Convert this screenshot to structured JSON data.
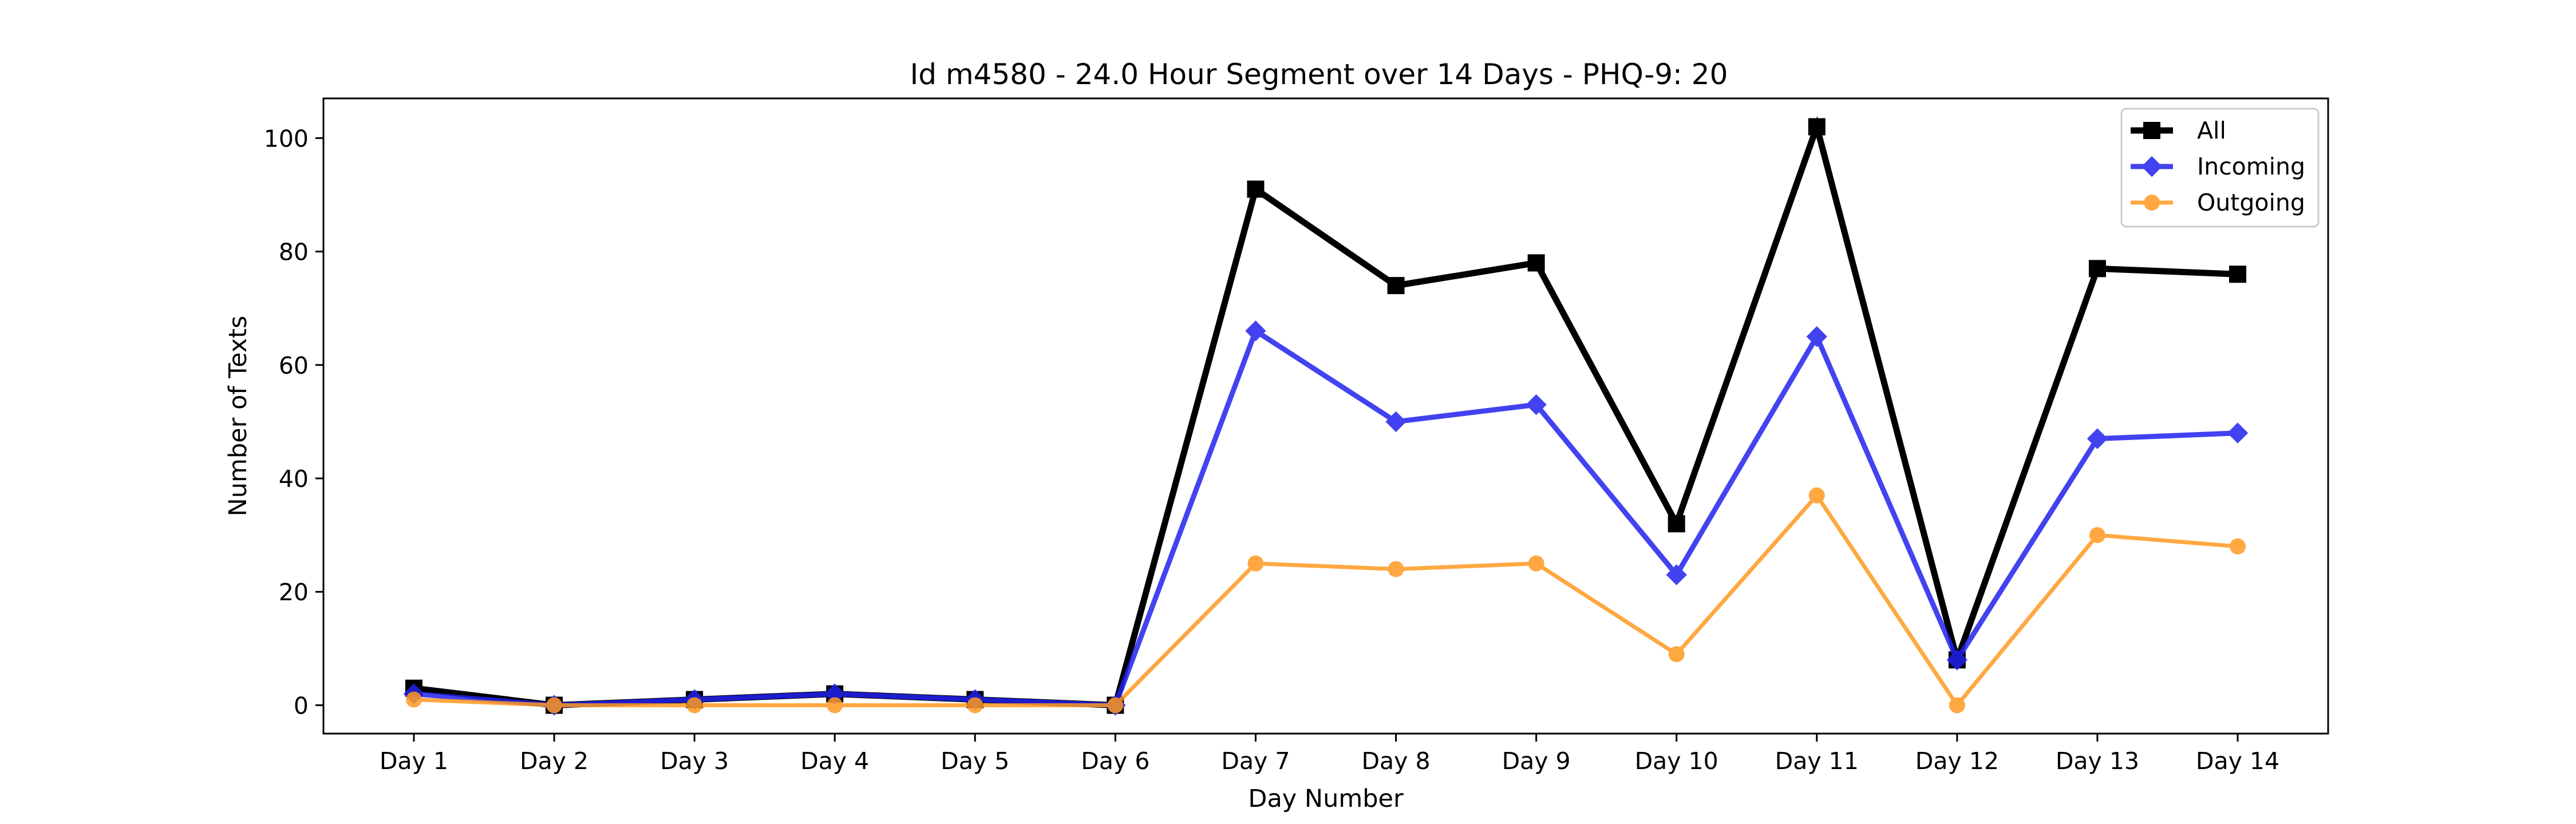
{
  "chart_data": {
    "type": "line",
    "title": "Id m4580 - 24.0 Hour Segment over 14 Days - PHQ-9: 20",
    "xlabel": "Day Number",
    "ylabel": "Number of Texts",
    "categories": [
      "Day 1",
      "Day 2",
      "Day 3",
      "Day 4",
      "Day 5",
      "Day 6",
      "Day 7",
      "Day 8",
      "Day 9",
      "Day 10",
      "Day 11",
      "Day 12",
      "Day 13",
      "Day 14"
    ],
    "ylim": [
      -5,
      107
    ],
    "yticks": [
      0,
      20,
      40,
      60,
      80,
      100
    ],
    "grid": false,
    "legend_position": "top-right",
    "series": [
      {
        "name": "All",
        "color": "#000000",
        "marker": "square",
        "values": [
          3,
          0,
          1,
          2,
          1,
          0,
          91,
          74,
          78,
          32,
          102,
          8,
          77,
          76
        ]
      },
      {
        "name": "Incoming",
        "color": "#2222ee",
        "marker": "diamond",
        "values": [
          2,
          0,
          1,
          2,
          1,
          0,
          66,
          50,
          53,
          23,
          65,
          8,
          47,
          48
        ]
      },
      {
        "name": "Outgoing",
        "color": "#ff9922",
        "marker": "circle",
        "values": [
          1,
          0,
          0,
          0,
          0,
          0,
          25,
          24,
          25,
          9,
          37,
          0,
          30,
          28
        ]
      }
    ]
  }
}
